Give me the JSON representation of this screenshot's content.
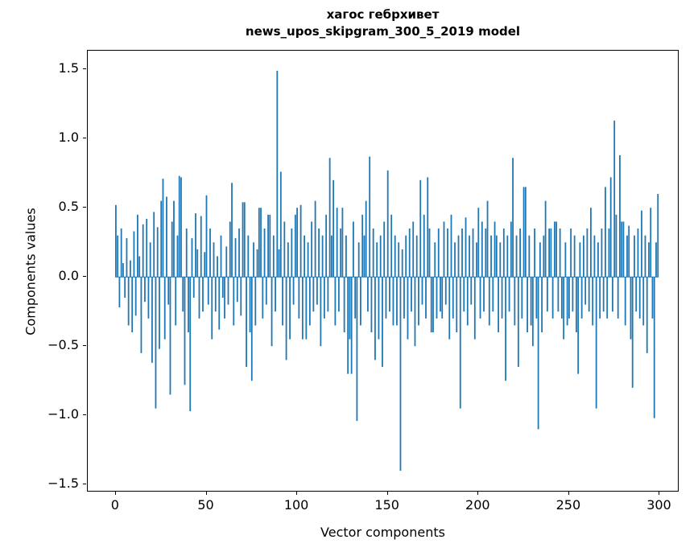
{
  "figure": {
    "title_line1": "хагос гебрхивет",
    "title_line2": "news_upos_skipgram_300_5_2019 model",
    "xlabel": "Vector components",
    "ylabel": "Components values"
  },
  "chart_data": {
    "type": "bar",
    "title": "хагос гебрхивет\nnews_upos_skipgram_300_5_2019 model",
    "xlabel": "Vector components",
    "ylabel": "Components values",
    "bar_color": "#1f77b4",
    "grid": false,
    "legend": null,
    "x_start": 0,
    "xlim": [
      -15.5,
      310
    ],
    "ylim": [
      -1.545,
      1.635
    ],
    "xticks": [
      0,
      50,
      100,
      150,
      200,
      250,
      300
    ],
    "yticks": [
      -1.5,
      -1.0,
      -0.5,
      0.0,
      0.5,
      1.0,
      1.5
    ],
    "ytick_labels": [
      "−1.5",
      "−1.0",
      "−0.5",
      "0.0",
      "0.5",
      "1.0",
      "1.5"
    ],
    "values": [
      0.52,
      0.3,
      -0.22,
      0.35,
      0.1,
      -0.15,
      0.28,
      -0.35,
      0.12,
      -0.4,
      0.33,
      -0.28,
      0.45,
      0.15,
      -0.55,
      0.38,
      -0.18,
      0.42,
      -0.3,
      0.25,
      -0.62,
      0.47,
      -0.95,
      0.36,
      -0.52,
      0.55,
      0.71,
      -0.45,
      0.58,
      -0.2,
      -0.85,
      0.4,
      0.55,
      -0.35,
      0.3,
      0.73,
      0.72,
      -0.25,
      -0.78,
      0.35,
      -0.4,
      -0.97,
      0.28,
      -0.15,
      0.46,
      0.2,
      -0.3,
      0.44,
      -0.25,
      0.18,
      0.59,
      -0.2,
      0.35,
      -0.45,
      0.25,
      -0.25,
      0.15,
      -0.38,
      0.3,
      -0.15,
      -0.3,
      0.22,
      -0.2,
      0.4,
      0.68,
      -0.35,
      0.28,
      -0.18,
      0.35,
      -0.28,
      0.54,
      0.54,
      -0.65,
      0.3,
      -0.4,
      -0.75,
      0.25,
      -0.35,
      0.2,
      0.5,
      0.5,
      -0.3,
      0.35,
      -0.2,
      0.45,
      0.45,
      -0.5,
      0.3,
      -0.25,
      1.49,
      0.2,
      0.76,
      -0.35,
      0.4,
      -0.6,
      0.25,
      -0.45,
      0.35,
      -0.2,
      0.45,
      0.5,
      -0.3,
      0.52,
      -0.45,
      0.3,
      -0.45,
      0.25,
      -0.35,
      0.4,
      -0.25,
      0.55,
      -0.2,
      0.35,
      -0.5,
      0.3,
      -0.3,
      0.45,
      -0.25,
      0.86,
      0.3,
      0.7,
      -0.35,
      0.5,
      -0.25,
      0.35,
      0.5,
      -0.4,
      0.3,
      -0.7,
      -0.45,
      -0.7,
      0.4,
      -0.3,
      -1.04,
      0.25,
      -0.35,
      0.45,
      0.3,
      0.55,
      -0.25,
      0.87,
      -0.4,
      0.35,
      -0.6,
      0.25,
      -0.45,
      0.3,
      -0.65,
      0.4,
      -0.3,
      0.77,
      -0.25,
      0.45,
      -0.35,
      0.3,
      -0.35,
      0.25,
      -1.4,
      0.2,
      -0.3,
      0.3,
      -0.45,
      0.35,
      -0.25,
      0.4,
      -0.5,
      0.3,
      -0.35,
      0.7,
      -0.2,
      0.45,
      -0.3,
      0.72,
      0.35,
      -0.4,
      -0.4,
      0.25,
      -0.3,
      0.35,
      -0.25,
      -0.3,
      0.4,
      -0.2,
      0.35,
      -0.45,
      0.45,
      -0.3,
      0.25,
      -0.4,
      0.3,
      -0.95,
      0.35,
      -0.25,
      0.43,
      -0.35,
      0.3,
      -0.2,
      0.35,
      -0.45,
      0.25,
      0.5,
      -0.3,
      0.4,
      -0.25,
      0.35,
      0.55,
      -0.35,
      0.3,
      -0.25,
      0.4,
      0.3,
      -0.4,
      0.25,
      -0.3,
      0.35,
      -0.75,
      0.3,
      -0.25,
      0.4,
      0.86,
      -0.35,
      0.3,
      -0.65,
      0.35,
      -0.3,
      0.65,
      0.65,
      -0.4,
      0.3,
      -0.35,
      -0.5,
      0.35,
      -0.3,
      -1.1,
      0.25,
      -0.4,
      0.3,
      0.55,
      -0.25,
      0.35,
      0.35,
      -0.3,
      0.4,
      0.4,
      -0.25,
      0.35,
      -0.3,
      -0.45,
      0.25,
      -0.35,
      -0.3,
      0.35,
      -0.25,
      0.3,
      -0.4,
      -0.7,
      0.25,
      -0.3,
      0.3,
      -0.2,
      0.35,
      -0.25,
      0.5,
      -0.35,
      0.3,
      -0.95,
      0.25,
      -0.3,
      0.35,
      -0.25,
      0.65,
      -0.3,
      0.35,
      0.72,
      -0.25,
      1.13,
      0.45,
      -0.3,
      0.88,
      0.4,
      0.4,
      -0.35,
      0.3,
      0.37,
      -0.45,
      -0.8,
      0.3,
      -0.25,
      0.35,
      -0.3,
      0.48,
      -0.35,
      0.3,
      -0.55,
      0.25,
      0.5,
      -0.3,
      -1.02,
      0.25,
      0.6
    ]
  }
}
